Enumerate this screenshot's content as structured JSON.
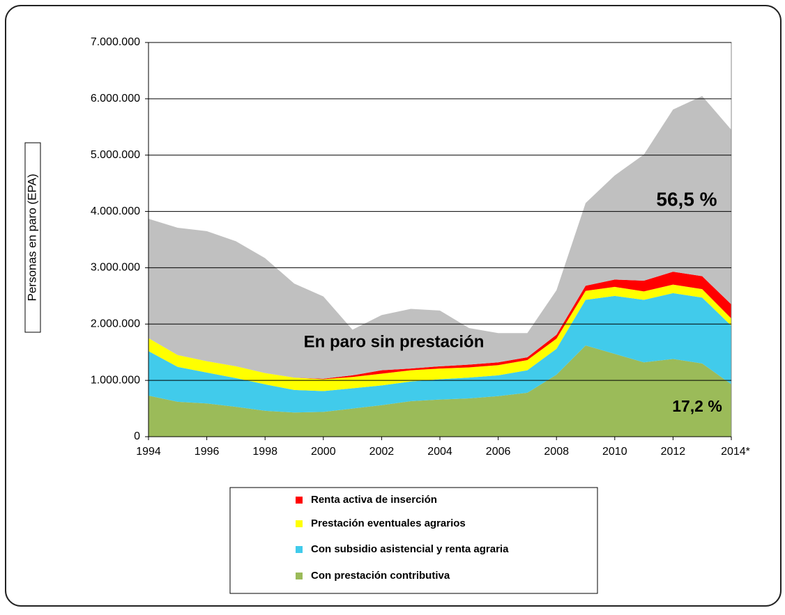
{
  "chart_data": {
    "type": "stacked-area",
    "y_label": "Personas en paro (EPA)",
    "x": [
      1994,
      1995,
      1996,
      1997,
      1998,
      1999,
      2000,
      2001,
      2002,
      2003,
      2004,
      2005,
      2006,
      2007,
      2008,
      2009,
      2010,
      2011,
      2012,
      2013,
      2014
    ],
    "xlim": [
      1994,
      2014
    ],
    "xticks": [
      1994,
      1996,
      1998,
      2000,
      2002,
      2004,
      2006,
      2008,
      2010,
      2012,
      {
        "value": 2014,
        "label": "2014*"
      }
    ],
    "ylim": [
      0,
      7000000
    ],
    "yticks": [
      0,
      {
        "value": 1000000,
        "label": "1.000.000"
      },
      {
        "value": 2000000,
        "label": "2.000.000"
      },
      {
        "value": 3000000,
        "label": "3.000.000"
      },
      {
        "value": 4000000,
        "label": "4.000.000"
      },
      {
        "value": 5000000,
        "label": "5.000.000"
      },
      {
        "value": 6000000,
        "label": "6.000.000"
      },
      {
        "value": 7000000,
        "label": "7.000.000"
      }
    ],
    "grid": true,
    "series": [
      {
        "name": "Con prestación contributiva",
        "color": "#9bbb59",
        "values": [
          730000,
          620000,
          590000,
          530000,
          460000,
          430000,
          440000,
          500000,
          560000,
          630000,
          660000,
          680000,
          720000,
          780000,
          1100000,
          1620000,
          1470000,
          1320000,
          1380000,
          1300000,
          930000
        ]
      },
      {
        "name": "Con subsidio asistencial y renta agraria",
        "color": "#41cbeb",
        "values": [
          790000,
          620000,
          550000,
          510000,
          470000,
          400000,
          370000,
          360000,
          350000,
          350000,
          360000,
          370000,
          370000,
          400000,
          460000,
          810000,
          1030000,
          1110000,
          1170000,
          1170000,
          1040000
        ]
      },
      {
        "name": "Prestación eventuales agrarios",
        "color": "#ffff00",
        "values": [
          230000,
          210000,
          200000,
          210000,
          200000,
          220000,
          210000,
          200000,
          210000,
          200000,
          190000,
          180000,
          180000,
          180000,
          180000,
          160000,
          160000,
          150000,
          150000,
          150000,
          130000
        ]
      },
      {
        "name": "Renta activa de inserción",
        "color": "#ff0000",
        "values": [
          0,
          0,
          0,
          0,
          0,
          0,
          10000,
          30000,
          60000,
          30000,
          40000,
          50000,
          50000,
          50000,
          70000,
          90000,
          130000,
          190000,
          230000,
          230000,
          250000
        ]
      },
      {
        "name": "En paro sin prestación",
        "color": "#c0c0c0",
        "values": [
          2120000,
          2260000,
          2310000,
          2220000,
          2040000,
          1670000,
          1460000,
          810000,
          980000,
          1060000,
          990000,
          650000,
          520000,
          430000,
          790000,
          1470000,
          1850000,
          2240000,
          2880000,
          3200000,
          3100000
        ]
      }
    ],
    "annotations": [
      "56,5 %",
      "17,2 %"
    ]
  }
}
